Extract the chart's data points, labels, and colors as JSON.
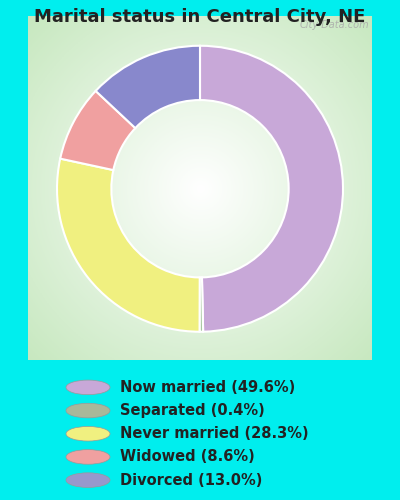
{
  "title": "Marital status in Central City, NE",
  "slices": [
    49.6,
    0.4,
    28.3,
    8.6,
    13.0
  ],
  "labels": [
    "Now married (49.6%)",
    "Separated (0.4%)",
    "Never married (28.3%)",
    "Widowed (8.6%)",
    "Divorced (13.0%)"
  ],
  "colors": [
    "#C8A8D8",
    "#A8C8A0",
    "#F0F080",
    "#F0A0A0",
    "#8888CC"
  ],
  "legend_colors": [
    "#C8A8D8",
    "#A8B89A",
    "#F0F080",
    "#F0A0A0",
    "#9898CC"
  ],
  "outer_bg": "#00EEEE",
  "chart_bg_inner": "#FFFFFF",
  "chart_bg_outer": "#C8E8C0",
  "title_color": "#222222",
  "title_fontsize": 13,
  "legend_fontsize": 10.5,
  "watermark": "City-Data.com",
  "start_angle": 90,
  "donut_width": 0.38
}
